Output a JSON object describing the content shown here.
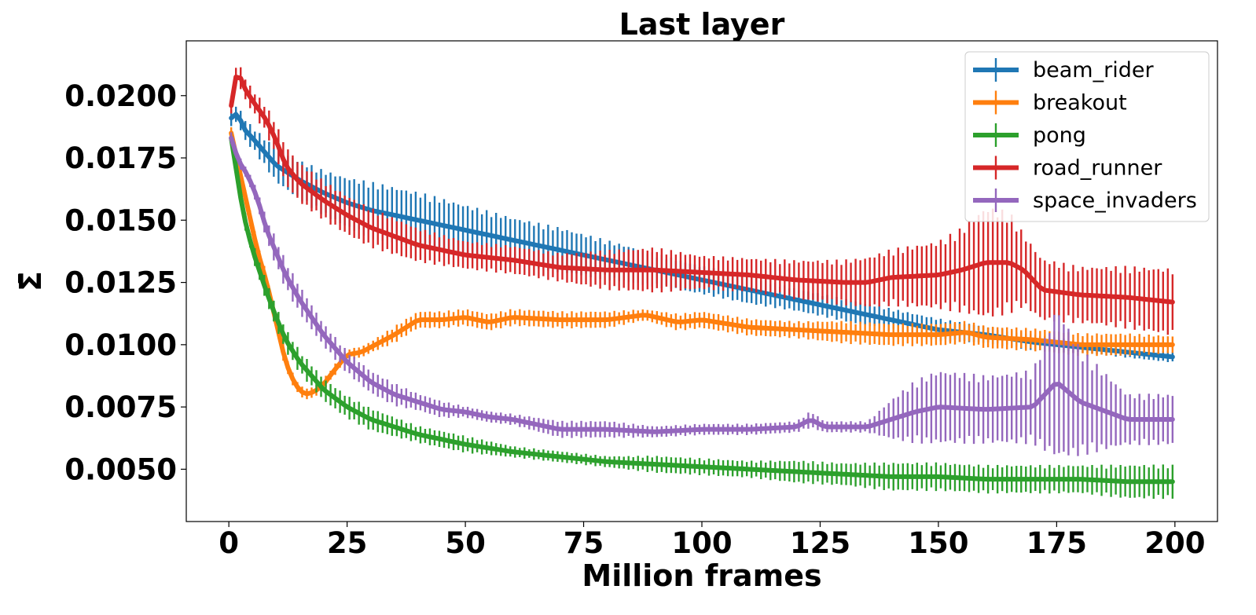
{
  "chart_data": {
    "type": "line",
    "title": "Last layer",
    "xlabel": "Million frames",
    "ylabel": "Σ̄",
    "xlim": [
      -9,
      209
    ],
    "ylim": [
      0.0029,
      0.0222
    ],
    "xticks": [
      0,
      25,
      50,
      75,
      100,
      125,
      150,
      175,
      200
    ],
    "xtick_labels": [
      "0",
      "25",
      "50",
      "75",
      "100",
      "125",
      "150",
      "175",
      "200"
    ],
    "yticks": [
      0.005,
      0.0075,
      0.01,
      0.0125,
      0.015,
      0.0175,
      0.02
    ],
    "ytick_labels": [
      "0.0050",
      "0.0075",
      "0.0100",
      "0.0125",
      "0.0150",
      "0.0175",
      "0.0200"
    ],
    "legend_position": "top-right",
    "error_bars": true,
    "series": [
      {
        "name": "beam_rider",
        "color": "#1f77b4",
        "x": [
          0.5,
          1,
          2,
          3,
          5,
          10,
          15,
          20,
          25,
          30,
          40,
          50,
          60,
          70,
          80,
          90,
          100,
          110,
          120,
          130,
          140,
          150,
          160,
          170,
          180,
          190,
          200
        ],
        "y": [
          0.0191,
          0.0192,
          0.0193,
          0.0187,
          0.0183,
          0.0172,
          0.0166,
          0.0161,
          0.0157,
          0.0154,
          0.015,
          0.0146,
          0.0142,
          0.0138,
          0.0134,
          0.013,
          0.0126,
          0.0122,
          0.0118,
          0.0114,
          0.011,
          0.0106,
          0.0104,
          0.0101,
          0.0099,
          0.0097,
          0.0095
        ],
        "err": [
          0.0003,
          0.0003,
          0.0003,
          0.0004,
          0.0004,
          0.0006,
          0.0007,
          0.0008,
          0.0009,
          0.001,
          0.001,
          0.0009,
          0.0008,
          0.0008,
          0.0007,
          0.0006,
          0.0005,
          0.0005,
          0.0004,
          0.0004,
          0.0004,
          0.0004,
          0.0003,
          0.0003,
          0.0002,
          0.0002,
          0.0002
        ]
      },
      {
        "name": "breakout",
        "color": "#ff7f0e",
        "x": [
          0.5,
          2,
          4,
          6,
          8,
          10,
          12,
          14,
          16,
          18,
          20,
          22,
          25,
          28,
          30,
          35,
          40,
          45,
          50,
          55,
          60,
          70,
          80,
          88,
          95,
          100,
          110,
          120,
          130,
          140,
          150,
          156,
          160,
          170,
          180,
          190,
          200
        ],
        "y": [
          0.0185,
          0.0172,
          0.0155,
          0.0138,
          0.0125,
          0.0109,
          0.0093,
          0.0084,
          0.008,
          0.0081,
          0.0084,
          0.0089,
          0.0096,
          0.0097,
          0.0099,
          0.0104,
          0.011,
          0.011,
          0.0111,
          0.0109,
          0.0111,
          0.011,
          0.011,
          0.0112,
          0.0109,
          0.011,
          0.0107,
          0.0106,
          0.0105,
          0.0104,
          0.0104,
          0.0105,
          0.0103,
          0.0102,
          0.01,
          0.01,
          0.01
        ],
        "err": [
          0.0002,
          0.0002,
          0.0003,
          0.0003,
          0.0003,
          0.0003,
          0.0003,
          0.0002,
          0.0002,
          0.0002,
          0.0002,
          0.0002,
          0.0002,
          0.0002,
          0.0002,
          0.0003,
          0.0003,
          0.0003,
          0.0003,
          0.0003,
          0.0003,
          0.0003,
          0.0003,
          0.0002,
          0.0003,
          0.0003,
          0.0003,
          0.0003,
          0.0004,
          0.0004,
          0.0004,
          0.0004,
          0.0004,
          0.0004,
          0.0004,
          0.0004,
          0.0003
        ]
      },
      {
        "name": "pong",
        "color": "#2ca02c",
        "x": [
          0.5,
          2,
          3,
          5,
          8,
          10,
          12,
          15,
          20,
          25,
          30,
          40,
          50,
          60,
          70,
          80,
          90,
          100,
          110,
          120,
          130,
          140,
          150,
          160,
          170,
          180,
          190,
          200
        ],
        "y": [
          0.0183,
          0.0165,
          0.0153,
          0.0138,
          0.0121,
          0.0111,
          0.0102,
          0.0093,
          0.0082,
          0.0075,
          0.007,
          0.0064,
          0.006,
          0.0057,
          0.0055,
          0.0053,
          0.0052,
          0.0051,
          0.005,
          0.0049,
          0.0048,
          0.0047,
          0.0047,
          0.0046,
          0.0046,
          0.0046,
          0.0045,
          0.0045
        ],
        "err": [
          0.0002,
          0.0003,
          0.0003,
          0.0003,
          0.0004,
          0.0004,
          0.0004,
          0.0004,
          0.0004,
          0.0004,
          0.0004,
          0.0003,
          0.0003,
          0.0002,
          0.0002,
          0.0002,
          0.0003,
          0.0003,
          0.0003,
          0.0004,
          0.0004,
          0.0005,
          0.0005,
          0.0005,
          0.0005,
          0.0005,
          0.0006,
          0.0006
        ]
      },
      {
        "name": "road_runner",
        "color": "#d62728",
        "x": [
          0.5,
          1,
          2,
          3,
          5,
          8,
          10,
          12,
          15,
          20,
          25,
          30,
          40,
          50,
          60,
          70,
          80,
          90,
          100,
          110,
          120,
          130,
          135,
          140,
          150,
          155,
          160,
          165,
          168,
          172,
          180,
          190,
          200
        ],
        "y": [
          0.0196,
          0.0205,
          0.021,
          0.0204,
          0.0198,
          0.019,
          0.0182,
          0.0172,
          0.0165,
          0.0158,
          0.0152,
          0.0147,
          0.014,
          0.0136,
          0.0134,
          0.0131,
          0.013,
          0.013,
          0.0129,
          0.0128,
          0.0126,
          0.0125,
          0.0125,
          0.0127,
          0.0128,
          0.013,
          0.0133,
          0.0133,
          0.013,
          0.0122,
          0.012,
          0.0119,
          0.0117
        ],
        "err": [
          0.0003,
          0.0003,
          0.0004,
          0.0004,
          0.0004,
          0.0005,
          0.0006,
          0.0007,
          0.0007,
          0.0007,
          0.0007,
          0.0007,
          0.0006,
          0.0005,
          0.0005,
          0.0005,
          0.0007,
          0.0008,
          0.0006,
          0.0006,
          0.0007,
          0.0008,
          0.0009,
          0.001,
          0.0012,
          0.0015,
          0.002,
          0.0018,
          0.0013,
          0.0011,
          0.001,
          0.0011,
          0.0012
        ]
      },
      {
        "name": "space_invaders",
        "color": "#9467bd",
        "x": [
          0.5,
          2,
          4,
          6,
          8,
          10,
          12,
          15,
          20,
          25,
          30,
          35,
          40,
          45,
          50,
          55,
          60,
          70,
          80,
          90,
          100,
          110,
          120,
          123,
          126,
          135,
          140,
          145,
          150,
          160,
          170,
          175,
          180,
          190,
          200
        ],
        "y": [
          0.0183,
          0.0174,
          0.0168,
          0.0159,
          0.0146,
          0.0137,
          0.0128,
          0.0118,
          0.0104,
          0.0093,
          0.0085,
          0.008,
          0.0077,
          0.0074,
          0.0073,
          0.0071,
          0.007,
          0.0066,
          0.0066,
          0.0065,
          0.0066,
          0.0066,
          0.0067,
          0.007,
          0.0067,
          0.0067,
          0.007,
          0.0073,
          0.0075,
          0.0074,
          0.0075,
          0.0085,
          0.0077,
          0.007,
          0.007
        ],
        "err": [
          0.0002,
          0.0002,
          0.0002,
          0.0003,
          0.0004,
          0.0005,
          0.0005,
          0.0005,
          0.0004,
          0.0004,
          0.0004,
          0.0004,
          0.0003,
          0.0003,
          0.0002,
          0.0002,
          0.0002,
          0.0003,
          0.0003,
          0.0002,
          0.0002,
          0.0002,
          0.0002,
          0.0003,
          0.0002,
          0.0002,
          0.0007,
          0.0011,
          0.0013,
          0.0012,
          0.0013,
          0.0027,
          0.0019,
          0.0009,
          0.0009
        ]
      }
    ]
  }
}
